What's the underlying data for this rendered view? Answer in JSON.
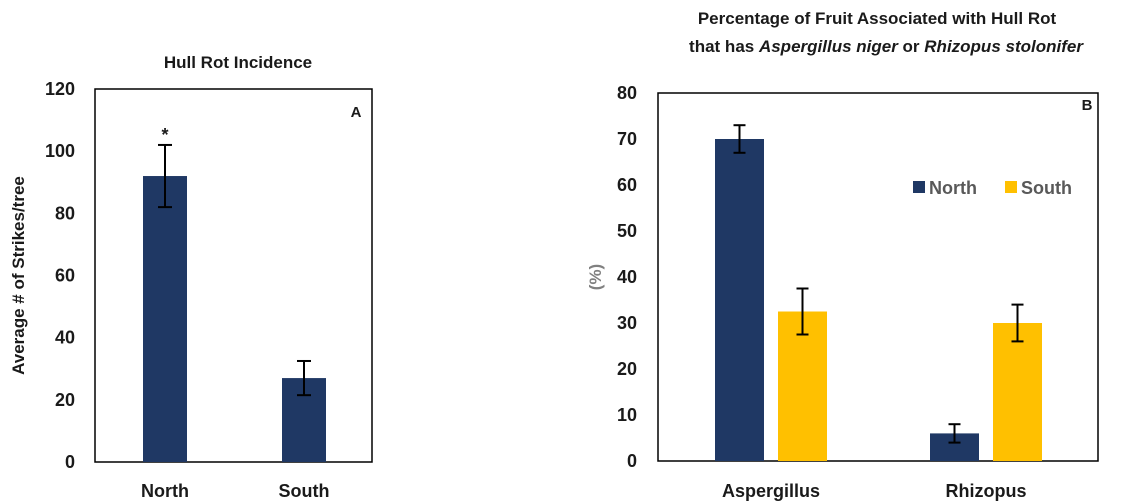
{
  "chart_data": [
    {
      "type": "bar",
      "title": "Hull Rot Incidence",
      "panel_label": "A",
      "categories": [
        "North",
        "South"
      ],
      "values": [
        92,
        27
      ],
      "errors": [
        10,
        5.5
      ],
      "annotations": [
        "*",
        ""
      ],
      "ylabel": "Average # of Strikes/tree",
      "xlabel": "",
      "ylim": [
        0,
        120
      ],
      "yticks": [
        0,
        20,
        40,
        60,
        80,
        100,
        120
      ],
      "grid": false,
      "colors": [
        "#1f3864",
        "#1f3864"
      ]
    },
    {
      "type": "bar",
      "title_line1": "Percentage of Fruit Associated with Hull Rot",
      "title_line2": {
        "prefix": "that has ",
        "italic1": "Aspergillus niger",
        "middle": " or ",
        "italic2": "Rhizopus stolonifer"
      },
      "panel_label": "B",
      "categories": [
        "Aspergillus",
        "Rhizopus"
      ],
      "series": [
        {
          "name": "North",
          "values": [
            70,
            6
          ],
          "errors": [
            3,
            2
          ],
          "color": "#1f3864"
        },
        {
          "name": "South",
          "values": [
            32.5,
            30
          ],
          "errors": [
            5,
            4
          ],
          "color": "#ffc000"
        }
      ],
      "ylabel": "(%)",
      "xlabel": "",
      "ylim": [
        0,
        80
      ],
      "yticks": [
        0,
        10,
        20,
        30,
        40,
        50,
        60,
        70,
        80
      ],
      "legend_position": "top-right",
      "grid": false
    }
  ]
}
